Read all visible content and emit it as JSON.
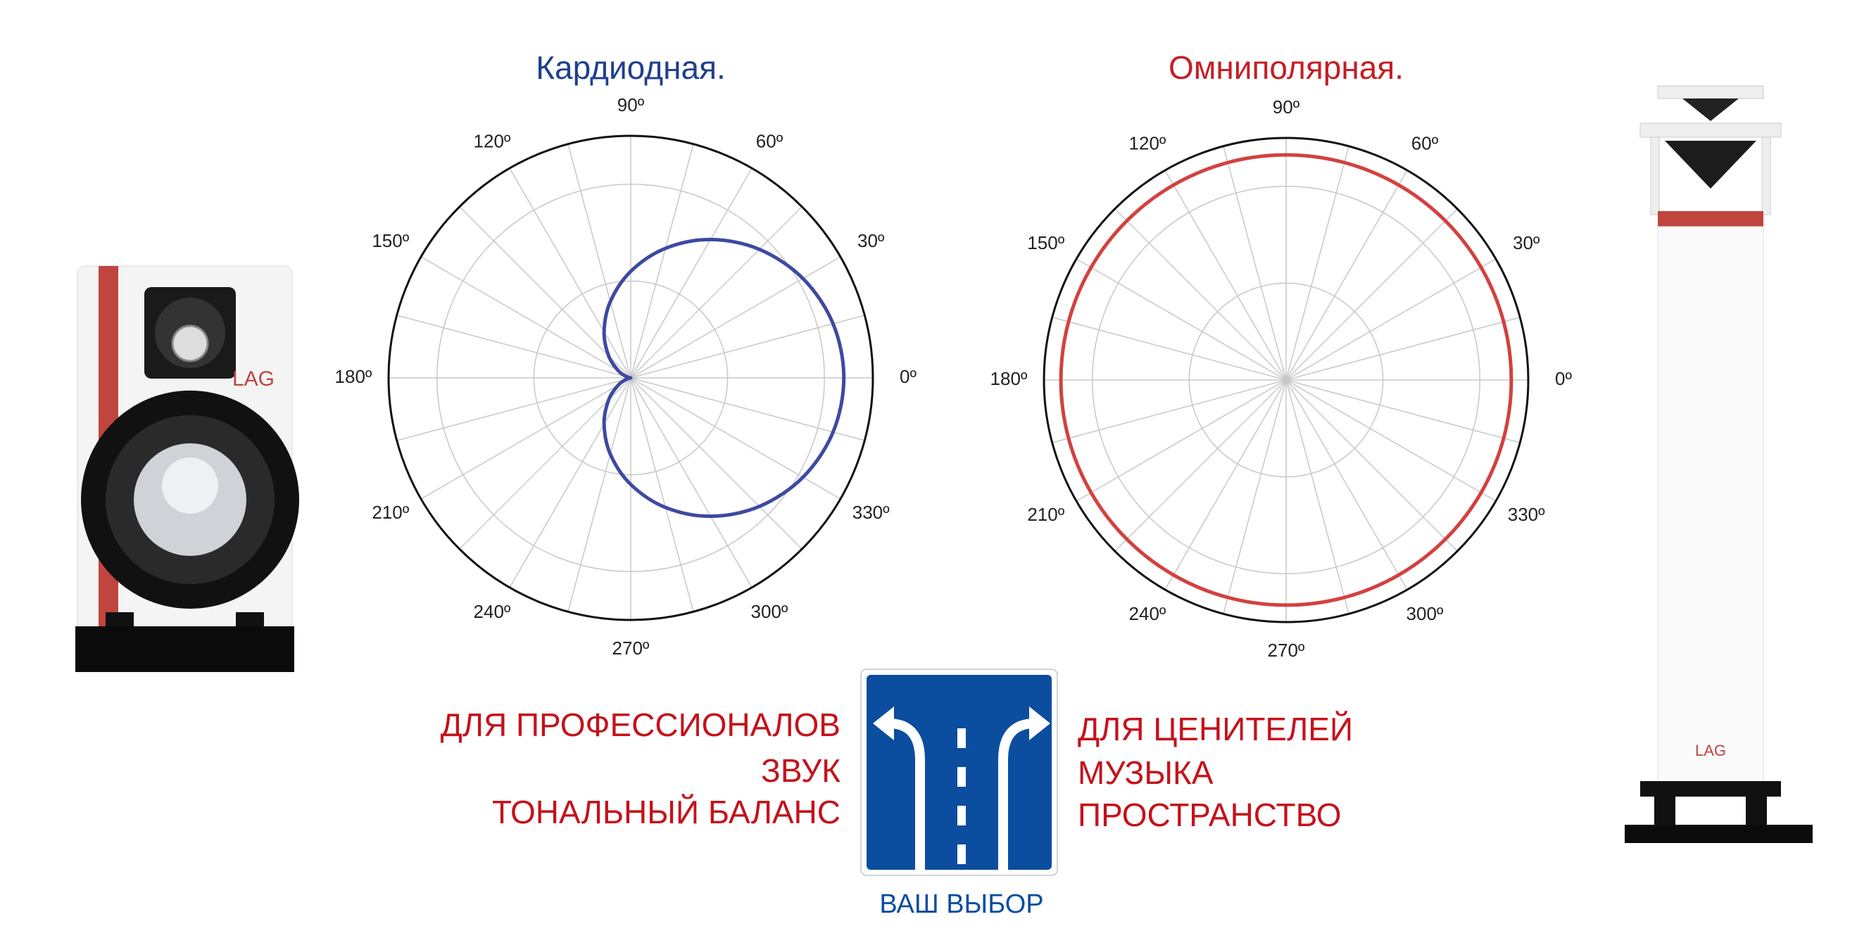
{
  "chart_data": [
    {
      "type": "polar",
      "title": "Кардиодная.",
      "title_color": "#1f3f8f",
      "color": "#3d4aa0",
      "theta": [
        0,
        15,
        30,
        45,
        60,
        75,
        90,
        105,
        120,
        135,
        150,
        165,
        180,
        195,
        210,
        225,
        240,
        255,
        270,
        285,
        300,
        315,
        330,
        345
      ],
      "r": [
        0.88,
        0.865,
        0.821,
        0.751,
        0.66,
        0.554,
        0.44,
        0.326,
        0.22,
        0.129,
        0.059,
        0.015,
        0,
        0.015,
        0.059,
        0.129,
        0.22,
        0.326,
        0.44,
        0.554,
        0.66,
        0.751,
        0.821,
        0.865
      ],
      "rlim": [
        0,
        1
      ],
      "rgrid": [
        0.4,
        0.8
      ],
      "angular_grid": 15,
      "thetaticks": [
        {
          "value": 0,
          "label": "0º"
        },
        {
          "value": 30,
          "label": "30º"
        },
        {
          "value": 60,
          "label": "60º"
        },
        {
          "value": 90,
          "label": "90º"
        },
        {
          "value": 120,
          "label": "120º"
        },
        {
          "value": 150,
          "label": "150º"
        },
        {
          "value": 180,
          "label": "180º"
        },
        {
          "value": 210,
          "label": "210º"
        },
        {
          "value": 240,
          "label": "240º"
        },
        {
          "value": 270,
          "label": "270º"
        },
        {
          "value": 300,
          "label": "300º"
        },
        {
          "value": 330,
          "label": "330º"
        }
      ]
    },
    {
      "type": "polar",
      "title": "Омниполярная.",
      "title_color": "#c41e24",
      "color": "#d2413f",
      "theta": [
        0,
        15,
        30,
        45,
        60,
        75,
        90,
        105,
        120,
        135,
        150,
        165,
        180,
        195,
        210,
        225,
        240,
        255,
        270,
        285,
        300,
        315,
        330,
        345
      ],
      "r": [
        0.93,
        0.93,
        0.93,
        0.93,
        0.93,
        0.93,
        0.93,
        0.93,
        0.93,
        0.93,
        0.93,
        0.93,
        0.93,
        0.93,
        0.93,
        0.93,
        0.93,
        0.93,
        0.93,
        0.93,
        0.93,
        0.93,
        0.93,
        0.93
      ],
      "rlim": [
        0,
        1
      ],
      "rgrid": [
        0.4,
        0.8
      ],
      "angular_grid": 15,
      "thetaticks": [
        {
          "value": 0,
          "label": "0º"
        },
        {
          "value": 30,
          "label": "30º"
        },
        {
          "value": 60,
          "label": "60º"
        },
        {
          "value": 90,
          "label": "90º"
        },
        {
          "value": 120,
          "label": "120º"
        },
        {
          "value": 150,
          "label": "150º"
        },
        {
          "value": 180,
          "label": "180º"
        },
        {
          "value": 210,
          "label": "210º"
        },
        {
          "value": 240,
          "label": "240º"
        },
        {
          "value": 270,
          "label": "270º"
        },
        {
          "value": 300,
          "label": "300º"
        },
        {
          "value": 330,
          "label": "330º"
        }
      ]
    }
  ],
  "left_text": [
    "ДЛЯ ПРОФЕССИОНАЛОВ",
    "ЗВУК",
    "ТОНАЛЬНЫЙ БАЛАНС"
  ],
  "right_text": [
    "ДЛЯ ЦЕНИТЕЛЕЙ",
    "МУЗЫКА",
    "ПРОСТРАНСТВО"
  ],
  "sign_caption": "ВАШ ВЫБОР",
  "brand": "LAG"
}
